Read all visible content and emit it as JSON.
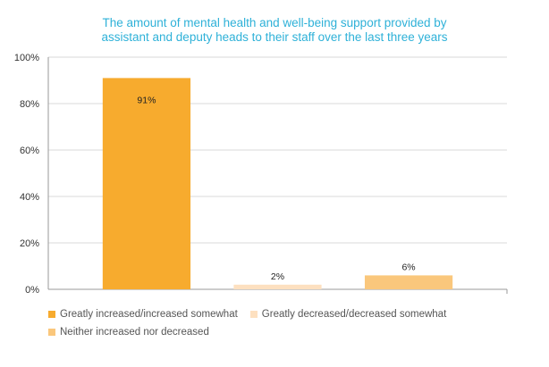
{
  "chart_data": {
    "type": "bar",
    "title_lines": [
      "The amount of mental health and well-being support provided by",
      "assistant and deputy heads to their staff over the last three years"
    ],
    "categories": [
      "Greatly increased/increased somewhat",
      "Greatly decreased/decreased somewhat",
      "Neither increased nor decreased"
    ],
    "values": [
      91,
      2,
      6
    ],
    "data_labels": [
      "91%",
      "2%",
      "6%"
    ],
    "colors": [
      "#f7ab2e",
      "#fde0c0",
      "#fac77c"
    ],
    "ylim": [
      0,
      100
    ],
    "yticks": [
      0,
      20,
      40,
      60,
      80,
      100
    ],
    "ytick_labels": [
      "0%",
      "20%",
      "40%",
      "60%",
      "80%",
      "100%"
    ],
    "grid": true,
    "legend": {
      "placement": "bottom",
      "entries": [
        "Greatly increased/increased somewhat",
        "Greatly decreased/decreased somewhat",
        "Neither increased nor decreased"
      ]
    }
  }
}
